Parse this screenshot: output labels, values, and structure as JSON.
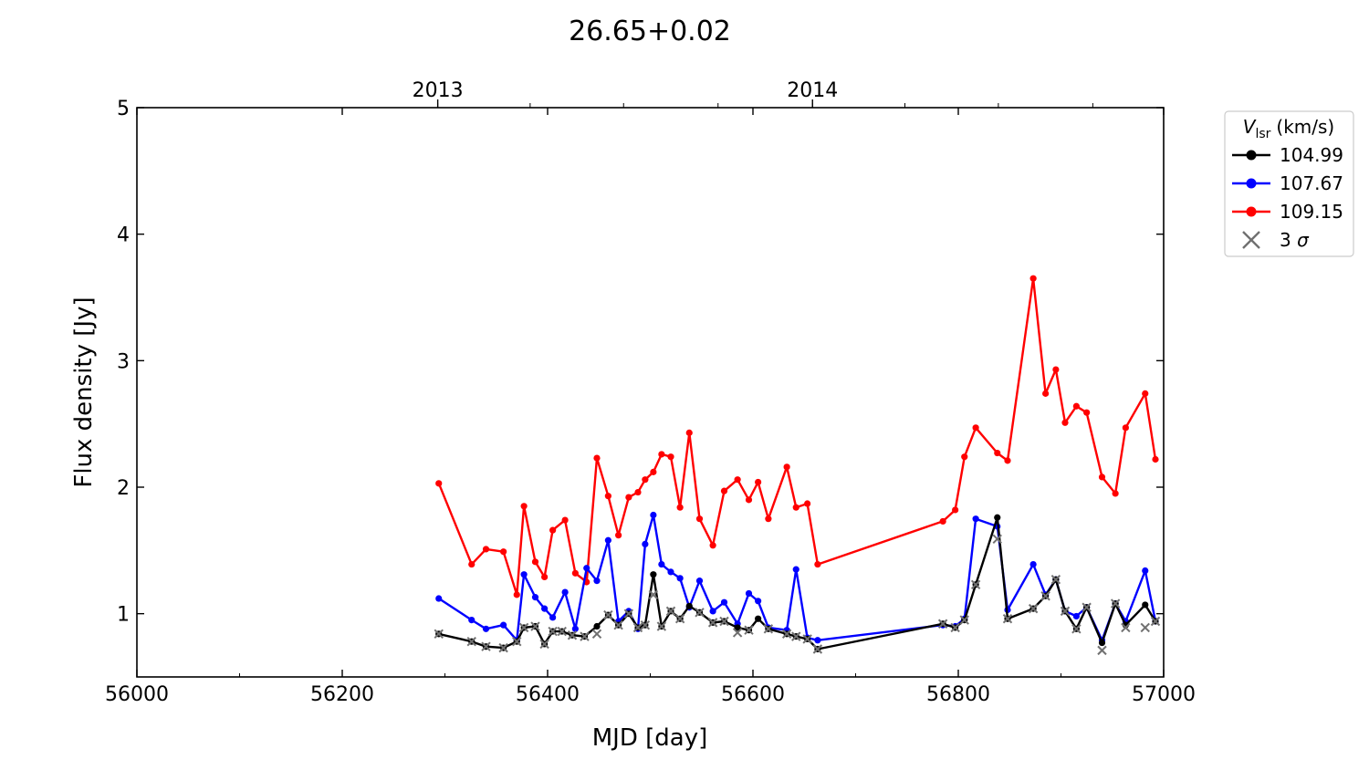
{
  "chart_data": {
    "type": "line",
    "title": "26.65+0.02",
    "xlabel": "MJD [day]",
    "ylabel": "Flux density [Jy]",
    "xlim": [
      56000,
      57000
    ],
    "ylim": [
      0.5,
      5
    ],
    "x_ticks": [
      56000,
      56200,
      56400,
      56600,
      56800,
      57000
    ],
    "x_tick_labels": [
      "56000",
      "56200",
      "56400",
      "56600",
      "56800",
      "57000"
    ],
    "y_ticks": [
      1,
      2,
      3,
      4,
      5
    ],
    "y_tick_labels": [
      "1",
      "2",
      "3",
      "4",
      "5"
    ],
    "top_axis": {
      "ticks": [
        56293,
        56658
      ],
      "labels": [
        "2013",
        "2014"
      ],
      "minor_ticks": [
        56293,
        56383,
        56474,
        56566,
        56658,
        56748,
        56839,
        56931
      ]
    },
    "grid": false,
    "legend": {
      "placement": "outside-right",
      "title_main": "V",
      "title_sub": "lsr",
      "title_unit": "(km/s)",
      "entries": [
        "104.99",
        "107.67",
        "109.15",
        "3 σ"
      ],
      "sigma_label_num": "3",
      "sigma_label_sym": "σ"
    },
    "series": [
      {
        "name": "104.99",
        "color": "#000000",
        "x": [
          56294,
          56326,
          56340,
          56357,
          56370,
          56377,
          56388,
          56397,
          56405,
          56414,
          56424,
          56436,
          56448,
          56459,
          56469,
          56479,
          56488,
          56495,
          56503,
          56511,
          56520,
          56529,
          56538,
          56548,
          56561,
          56572,
          56585,
          56596,
          56605,
          56615,
          56633,
          56642,
          56653,
          56663,
          56785,
          56797,
          56806,
          56817,
          56838,
          56848,
          56873,
          56885,
          56895,
          56904,
          56915,
          56925,
          56940,
          56953,
          56963,
          56982,
          56992
        ],
        "y": [
          0.84,
          0.78,
          0.74,
          0.73,
          0.78,
          0.89,
          0.9,
          0.76,
          0.86,
          0.86,
          0.83,
          0.82,
          0.9,
          0.99,
          0.91,
          1.0,
          0.89,
          0.91,
          1.31,
          0.9,
          1.02,
          0.96,
          1.06,
          1.01,
          0.93,
          0.94,
          0.89,
          0.87,
          0.96,
          0.88,
          0.84,
          0.82,
          0.8,
          0.72,
          0.92,
          0.89,
          0.95,
          1.23,
          1.76,
          0.96,
          1.04,
          1.14,
          1.27,
          1.02,
          0.88,
          1.05,
          0.77,
          1.08,
          0.91,
          1.07,
          0.94
        ]
      },
      {
        "name": "107.67",
        "color": "#0000ff",
        "x": [
          56294,
          56326,
          56340,
          56357,
          56370,
          56377,
          56388,
          56397,
          56405,
          56417,
          56427,
          56438,
          56448,
          56459,
          56469,
          56479,
          56488,
          56495,
          56503,
          56511,
          56520,
          56529,
          56538,
          56548,
          56561,
          56572,
          56585,
          56596,
          56605,
          56615,
          56633,
          56642,
          56653,
          56663,
          56785,
          56797,
          56806,
          56817,
          56838,
          56848,
          56873,
          56885,
          56895,
          56904,
          56915,
          56925,
          56940,
          56953,
          56963,
          56982,
          56992
        ],
        "y": [
          1.12,
          0.95,
          0.88,
          0.91,
          0.79,
          1.31,
          1.13,
          1.04,
          0.97,
          1.17,
          0.88,
          1.36,
          1.26,
          1.58,
          0.94,
          1.02,
          0.88,
          1.55,
          1.78,
          1.39,
          1.33,
          1.28,
          1.05,
          1.26,
          1.02,
          1.09,
          0.92,
          1.16,
          1.1,
          0.89,
          0.87,
          1.35,
          0.81,
          0.79,
          0.91,
          0.9,
          0.96,
          1.75,
          1.69,
          1.03,
          1.39,
          1.15,
          1.27,
          1.02,
          0.98,
          1.05,
          0.79,
          1.08,
          0.94,
          1.34,
          0.94
        ]
      },
      {
        "name": "109.15",
        "color": "#ff0000",
        "x": [
          56294,
          56326,
          56340,
          56357,
          56370,
          56377,
          56388,
          56397,
          56405,
          56417,
          56427,
          56438,
          56448,
          56459,
          56469,
          56479,
          56488,
          56495,
          56503,
          56511,
          56520,
          56529,
          56538,
          56548,
          56561,
          56572,
          56585,
          56596,
          56605,
          56615,
          56633,
          56642,
          56653,
          56663,
          56785,
          56797,
          56806,
          56817,
          56838,
          56848,
          56873,
          56885,
          56895,
          56904,
          56915,
          56925,
          56940,
          56953,
          56963,
          56982,
          56992
        ],
        "y": [
          2.03,
          1.39,
          1.51,
          1.49,
          1.15,
          1.85,
          1.41,
          1.29,
          1.66,
          1.74,
          1.32,
          1.25,
          2.23,
          1.93,
          1.62,
          1.92,
          1.96,
          2.06,
          2.12,
          2.26,
          2.24,
          1.84,
          2.43,
          1.75,
          1.54,
          1.97,
          2.06,
          1.9,
          2.04,
          1.75,
          2.16,
          1.84,
          1.87,
          1.39,
          1.73,
          1.82,
          2.24,
          2.47,
          2.27,
          2.21,
          3.65,
          2.74,
          2.93,
          2.51,
          2.64,
          2.59,
          2.08,
          1.95,
          2.47,
          2.74,
          2.22
        ]
      },
      {
        "name": "3 σ",
        "color": "#707070",
        "marker": "x",
        "x": [
          56294,
          56326,
          56340,
          56357,
          56370,
          56377,
          56388,
          56397,
          56405,
          56414,
          56424,
          56436,
          56448,
          56459,
          56469,
          56479,
          56488,
          56495,
          56503,
          56511,
          56520,
          56529,
          56548,
          56561,
          56572,
          56585,
          56596,
          56615,
          56633,
          56642,
          56653,
          56663,
          56785,
          56797,
          56806,
          56817,
          56838,
          56848,
          56873,
          56885,
          56895,
          56904,
          56915,
          56925,
          56940,
          56953,
          56963,
          56982,
          56992
        ],
        "y": [
          0.84,
          0.78,
          0.74,
          0.73,
          0.78,
          0.89,
          0.9,
          0.76,
          0.86,
          0.86,
          0.83,
          0.82,
          0.84,
          0.99,
          0.91,
          1.0,
          0.89,
          0.91,
          1.15,
          0.9,
          1.02,
          0.96,
          1.01,
          0.93,
          0.94,
          0.85,
          0.87,
          0.88,
          0.84,
          0.82,
          0.8,
          0.72,
          0.92,
          0.89,
          0.95,
          1.23,
          1.59,
          0.96,
          1.04,
          1.14,
          1.27,
          1.02,
          0.88,
          1.05,
          0.71,
          1.08,
          0.89,
          0.89,
          0.94
        ]
      }
    ]
  }
}
